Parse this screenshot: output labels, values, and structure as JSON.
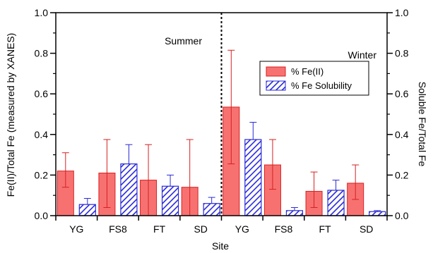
{
  "chart_data": {
    "type": "bar",
    "xlabel": "Site",
    "ylabel_left": "Fe(II)/Total Fe (measured by XANES)",
    "ylabel_right": "Soluble Fe/Total Fe",
    "ylim": [
      0,
      1.0
    ],
    "yticks": [
      "0.0",
      "0.2",
      "0.4",
      "0.6",
      "0.8",
      "1.0"
    ],
    "groups": [
      {
        "label": "Summer",
        "categories": [
          "YG",
          "FS8",
          "FT",
          "SD"
        ]
      },
      {
        "label": "Winter",
        "categories": [
          "YG",
          "FS8",
          "FT",
          "SD"
        ]
      }
    ],
    "categories": [
      "YG",
      "FS8",
      "FT",
      "SD",
      "YG",
      "FS8",
      "FT",
      "SD"
    ],
    "series": [
      {
        "name": "% Fe(II)",
        "color": "#f87171",
        "edge": "#d62020",
        "pattern": "solid",
        "values": [
          0.22,
          0.21,
          0.175,
          0.14,
          0.535,
          0.25,
          0.12,
          0.16
        ],
        "err_low": [
          0.14,
          0.04,
          0.0,
          0.0,
          0.255,
          0.13,
          0.04,
          0.08
        ],
        "err_high": [
          0.31,
          0.375,
          0.35,
          0.375,
          0.815,
          0.375,
          0.215,
          0.25
        ]
      },
      {
        "name": "% Fe Solubility",
        "color": "#2a2ad6",
        "edge": "#2a2ad6",
        "pattern": "hatch",
        "values": [
          0.055,
          0.255,
          0.145,
          0.06,
          0.375,
          0.025,
          0.125,
          0.02
        ],
        "err_high": [
          0.085,
          0.35,
          0.2,
          0.09,
          0.46,
          0.04,
          0.175,
          0.025
        ]
      }
    ],
    "divider_after_index": 3,
    "legend_position": "right"
  }
}
